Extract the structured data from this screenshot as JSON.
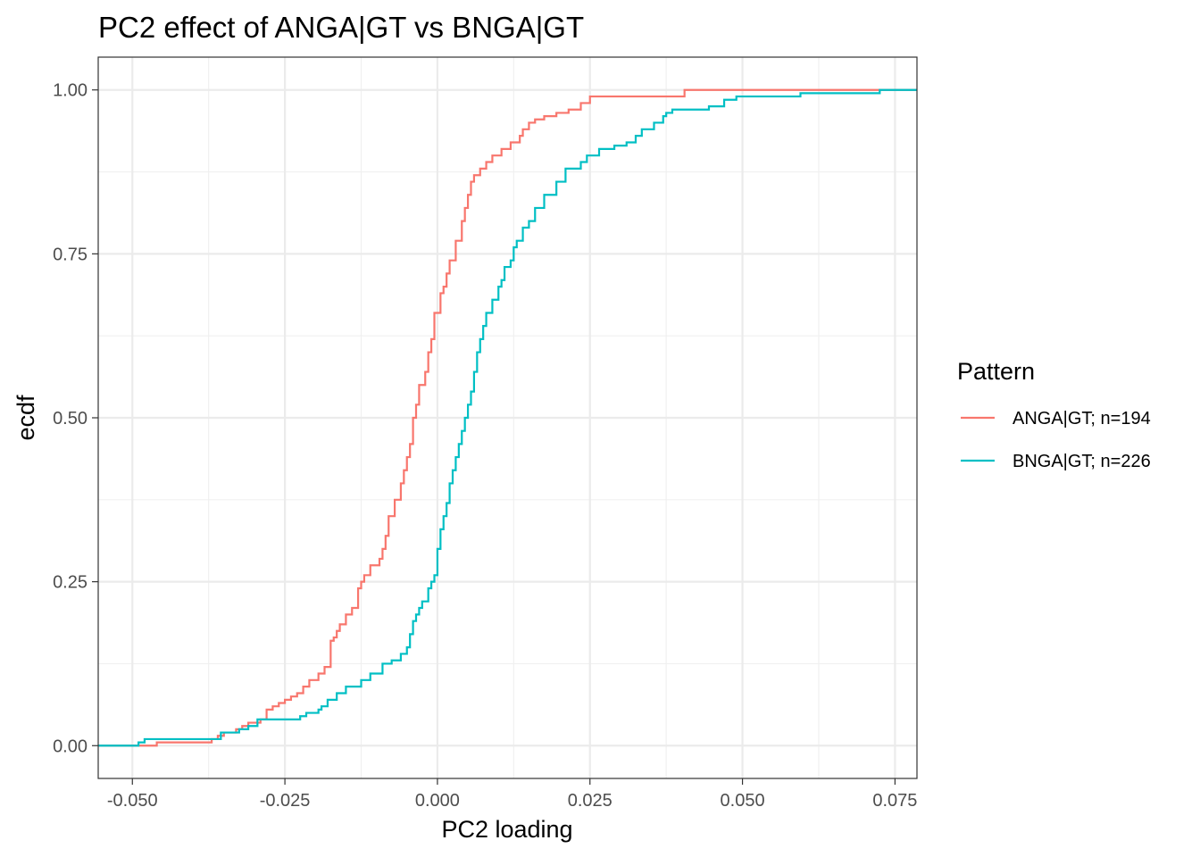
{
  "chart_data": {
    "type": "line",
    "step": true,
    "title": "PC2 effect of ANGA|GT vs BNGA|GT",
    "xlabel": "PC2 loading",
    "ylabel": "ecdf",
    "xlim": [
      -0.0556,
      0.0786
    ],
    "ylim": [
      -0.05,
      1.05
    ],
    "grid": true,
    "legend_position": "right",
    "legend_title": "Pattern",
    "x_ticks": [
      {
        "value": -0.05,
        "label": "-0.050"
      },
      {
        "value": -0.025,
        "label": "-0.025"
      },
      {
        "value": 0.0,
        "label": "0.000"
      },
      {
        "value": 0.025,
        "label": "0.025"
      },
      {
        "value": 0.05,
        "label": "0.050"
      },
      {
        "value": 0.075,
        "label": "0.075"
      }
    ],
    "x_minor_ticks": [
      -0.0375,
      -0.0125,
      0.0125,
      0.0375,
      0.0625
    ],
    "y_ticks": [
      {
        "value": 0.0,
        "label": "0.00"
      },
      {
        "value": 0.25,
        "label": "0.25"
      },
      {
        "value": 0.5,
        "label": "0.50"
      },
      {
        "value": 0.75,
        "label": "0.75"
      },
      {
        "value": 1.0,
        "label": "1.00"
      }
    ],
    "y_minor_ticks": [
      0.125,
      0.375,
      0.625,
      0.875
    ],
    "series": [
      {
        "name": "ANGA|GT; n=194",
        "color": "#F8766D",
        "points": [
          [
            -0.0556,
            0.0
          ],
          [
            -0.048,
            0.0
          ],
          [
            -0.046,
            0.005
          ],
          [
            -0.038,
            0.005
          ],
          [
            -0.037,
            0.01
          ],
          [
            -0.036,
            0.015
          ],
          [
            -0.035,
            0.02
          ],
          [
            -0.033,
            0.025
          ],
          [
            -0.032,
            0.03
          ],
          [
            -0.031,
            0.035
          ],
          [
            -0.029,
            0.04
          ],
          [
            -0.028,
            0.055
          ],
          [
            -0.027,
            0.06
          ],
          [
            -0.026,
            0.065
          ],
          [
            -0.025,
            0.07
          ],
          [
            -0.024,
            0.075
          ],
          [
            -0.023,
            0.08
          ],
          [
            -0.022,
            0.09
          ],
          [
            -0.021,
            0.1
          ],
          [
            -0.0195,
            0.11
          ],
          [
            -0.0185,
            0.12
          ],
          [
            -0.0175,
            0.16
          ],
          [
            -0.017,
            0.165
          ],
          [
            -0.0165,
            0.175
          ],
          [
            -0.016,
            0.185
          ],
          [
            -0.015,
            0.2
          ],
          [
            -0.014,
            0.21
          ],
          [
            -0.013,
            0.24
          ],
          [
            -0.0125,
            0.25
          ],
          [
            -0.012,
            0.26
          ],
          [
            -0.011,
            0.275
          ],
          [
            -0.0095,
            0.285
          ],
          [
            -0.009,
            0.3
          ],
          [
            -0.0085,
            0.32
          ],
          [
            -0.008,
            0.35
          ],
          [
            -0.007,
            0.375
          ],
          [
            -0.006,
            0.4
          ],
          [
            -0.0055,
            0.42
          ],
          [
            -0.005,
            0.44
          ],
          [
            -0.0045,
            0.46
          ],
          [
            -0.004,
            0.5
          ],
          [
            -0.0035,
            0.52
          ],
          [
            -0.003,
            0.55
          ],
          [
            -0.002,
            0.57
          ],
          [
            -0.0015,
            0.6
          ],
          [
            -0.001,
            0.62
          ],
          [
            -0.0005,
            0.66
          ],
          [
            0.0,
            0.66
          ],
          [
            0.0005,
            0.69
          ],
          [
            0.001,
            0.7
          ],
          [
            0.0015,
            0.72
          ],
          [
            0.002,
            0.74
          ],
          [
            0.003,
            0.77
          ],
          [
            0.004,
            0.8
          ],
          [
            0.0045,
            0.82
          ],
          [
            0.005,
            0.84
          ],
          [
            0.0055,
            0.86
          ],
          [
            0.006,
            0.87
          ],
          [
            0.007,
            0.88
          ],
          [
            0.008,
            0.89
          ],
          [
            0.009,
            0.9
          ],
          [
            0.0105,
            0.91
          ],
          [
            0.012,
            0.92
          ],
          [
            0.0135,
            0.93
          ],
          [
            0.014,
            0.94
          ],
          [
            0.015,
            0.95
          ],
          [
            0.016,
            0.955
          ],
          [
            0.0175,
            0.96
          ],
          [
            0.0195,
            0.965
          ],
          [
            0.0215,
            0.97
          ],
          [
            0.0235,
            0.98
          ],
          [
            0.025,
            0.99
          ],
          [
            0.0405,
            1.0
          ],
          [
            0.0786,
            1.0
          ]
        ]
      },
      {
        "name": "BNGA|GT; n=226",
        "color": "#00BFC4",
        "points": [
          [
            -0.0556,
            0.0
          ],
          [
            -0.05,
            0.0
          ],
          [
            -0.049,
            0.005
          ],
          [
            -0.048,
            0.01
          ],
          [
            -0.0365,
            0.01
          ],
          [
            -0.0355,
            0.02
          ],
          [
            -0.0325,
            0.025
          ],
          [
            -0.031,
            0.03
          ],
          [
            -0.0295,
            0.04
          ],
          [
            -0.024,
            0.04
          ],
          [
            -0.0225,
            0.045
          ],
          [
            -0.0215,
            0.05
          ],
          [
            -0.0195,
            0.055
          ],
          [
            -0.019,
            0.06
          ],
          [
            -0.018,
            0.07
          ],
          [
            -0.0165,
            0.08
          ],
          [
            -0.015,
            0.09
          ],
          [
            -0.0125,
            0.1
          ],
          [
            -0.011,
            0.11
          ],
          [
            -0.009,
            0.125
          ],
          [
            -0.0075,
            0.13
          ],
          [
            -0.006,
            0.14
          ],
          [
            -0.005,
            0.15
          ],
          [
            -0.0045,
            0.17
          ],
          [
            -0.004,
            0.19
          ],
          [
            -0.0035,
            0.2
          ],
          [
            -0.003,
            0.21
          ],
          [
            -0.0025,
            0.22
          ],
          [
            -0.0015,
            0.24
          ],
          [
            -0.001,
            0.25
          ],
          [
            -0.0005,
            0.26
          ],
          [
            0.0,
            0.3
          ],
          [
            0.0005,
            0.33
          ],
          [
            0.001,
            0.35
          ],
          [
            0.0015,
            0.37
          ],
          [
            0.002,
            0.4
          ],
          [
            0.0025,
            0.42
          ],
          [
            0.003,
            0.44
          ],
          [
            0.0035,
            0.46
          ],
          [
            0.004,
            0.48
          ],
          [
            0.0045,
            0.5
          ],
          [
            0.005,
            0.52
          ],
          [
            0.0055,
            0.54
          ],
          [
            0.006,
            0.57
          ],
          [
            0.0065,
            0.6
          ],
          [
            0.007,
            0.62
          ],
          [
            0.0075,
            0.64
          ],
          [
            0.008,
            0.66
          ],
          [
            0.009,
            0.68
          ],
          [
            0.01,
            0.7
          ],
          [
            0.0105,
            0.71
          ],
          [
            0.011,
            0.73
          ],
          [
            0.012,
            0.74
          ],
          [
            0.0125,
            0.76
          ],
          [
            0.013,
            0.77
          ],
          [
            0.014,
            0.79
          ],
          [
            0.015,
            0.8
          ],
          [
            0.016,
            0.82
          ],
          [
            0.0175,
            0.84
          ],
          [
            0.0195,
            0.86
          ],
          [
            0.021,
            0.88
          ],
          [
            0.0235,
            0.89
          ],
          [
            0.0245,
            0.9
          ],
          [
            0.0265,
            0.91
          ],
          [
            0.029,
            0.915
          ],
          [
            0.031,
            0.92
          ],
          [
            0.0325,
            0.93
          ],
          [
            0.0335,
            0.94
          ],
          [
            0.0355,
            0.95
          ],
          [
            0.037,
            0.96
          ],
          [
            0.0375,
            0.965
          ],
          [
            0.0385,
            0.97
          ],
          [
            0.0445,
            0.975
          ],
          [
            0.047,
            0.985
          ],
          [
            0.049,
            0.99
          ],
          [
            0.0595,
            0.995
          ],
          [
            0.0725,
            1.0
          ],
          [
            0.0786,
            1.0
          ]
        ]
      }
    ]
  }
}
